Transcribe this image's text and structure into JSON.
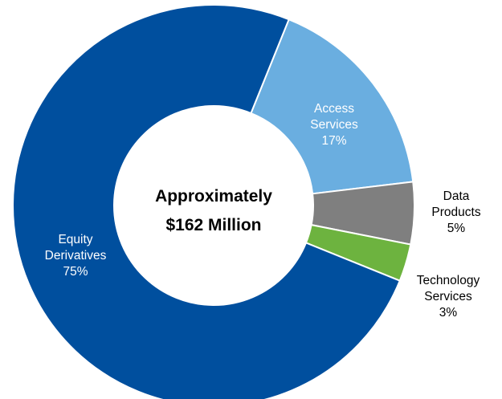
{
  "chart_data": {
    "type": "pie",
    "style": "donut",
    "center_label": [
      "Approximately",
      "$162 Million"
    ],
    "slices": [
      {
        "name_lines": [
          "Access",
          "Services"
        ],
        "pct_label": "17%",
        "value": 17,
        "color": "#6aaee0",
        "label_color": "#ffffff",
        "label_placement": "inside"
      },
      {
        "name_lines": [
          "Data",
          "Products"
        ],
        "pct_label": "5%",
        "value": 5,
        "color": "#7f7f7f",
        "label_color": "#000000",
        "label_placement": "outside"
      },
      {
        "name_lines": [
          "Technology",
          "Services"
        ],
        "pct_label": "3%",
        "value": 3,
        "color": "#6db33f",
        "label_color": "#000000",
        "label_placement": "outside"
      },
      {
        "name_lines": [
          "Equity",
          "Derivatives"
        ],
        "pct_label": "75%",
        "value": 75,
        "color": "#004f9e",
        "label_color": "#ffffff",
        "label_placement": "inside"
      }
    ],
    "start_angle_deg": 22,
    "border_color": "#ffffff"
  }
}
